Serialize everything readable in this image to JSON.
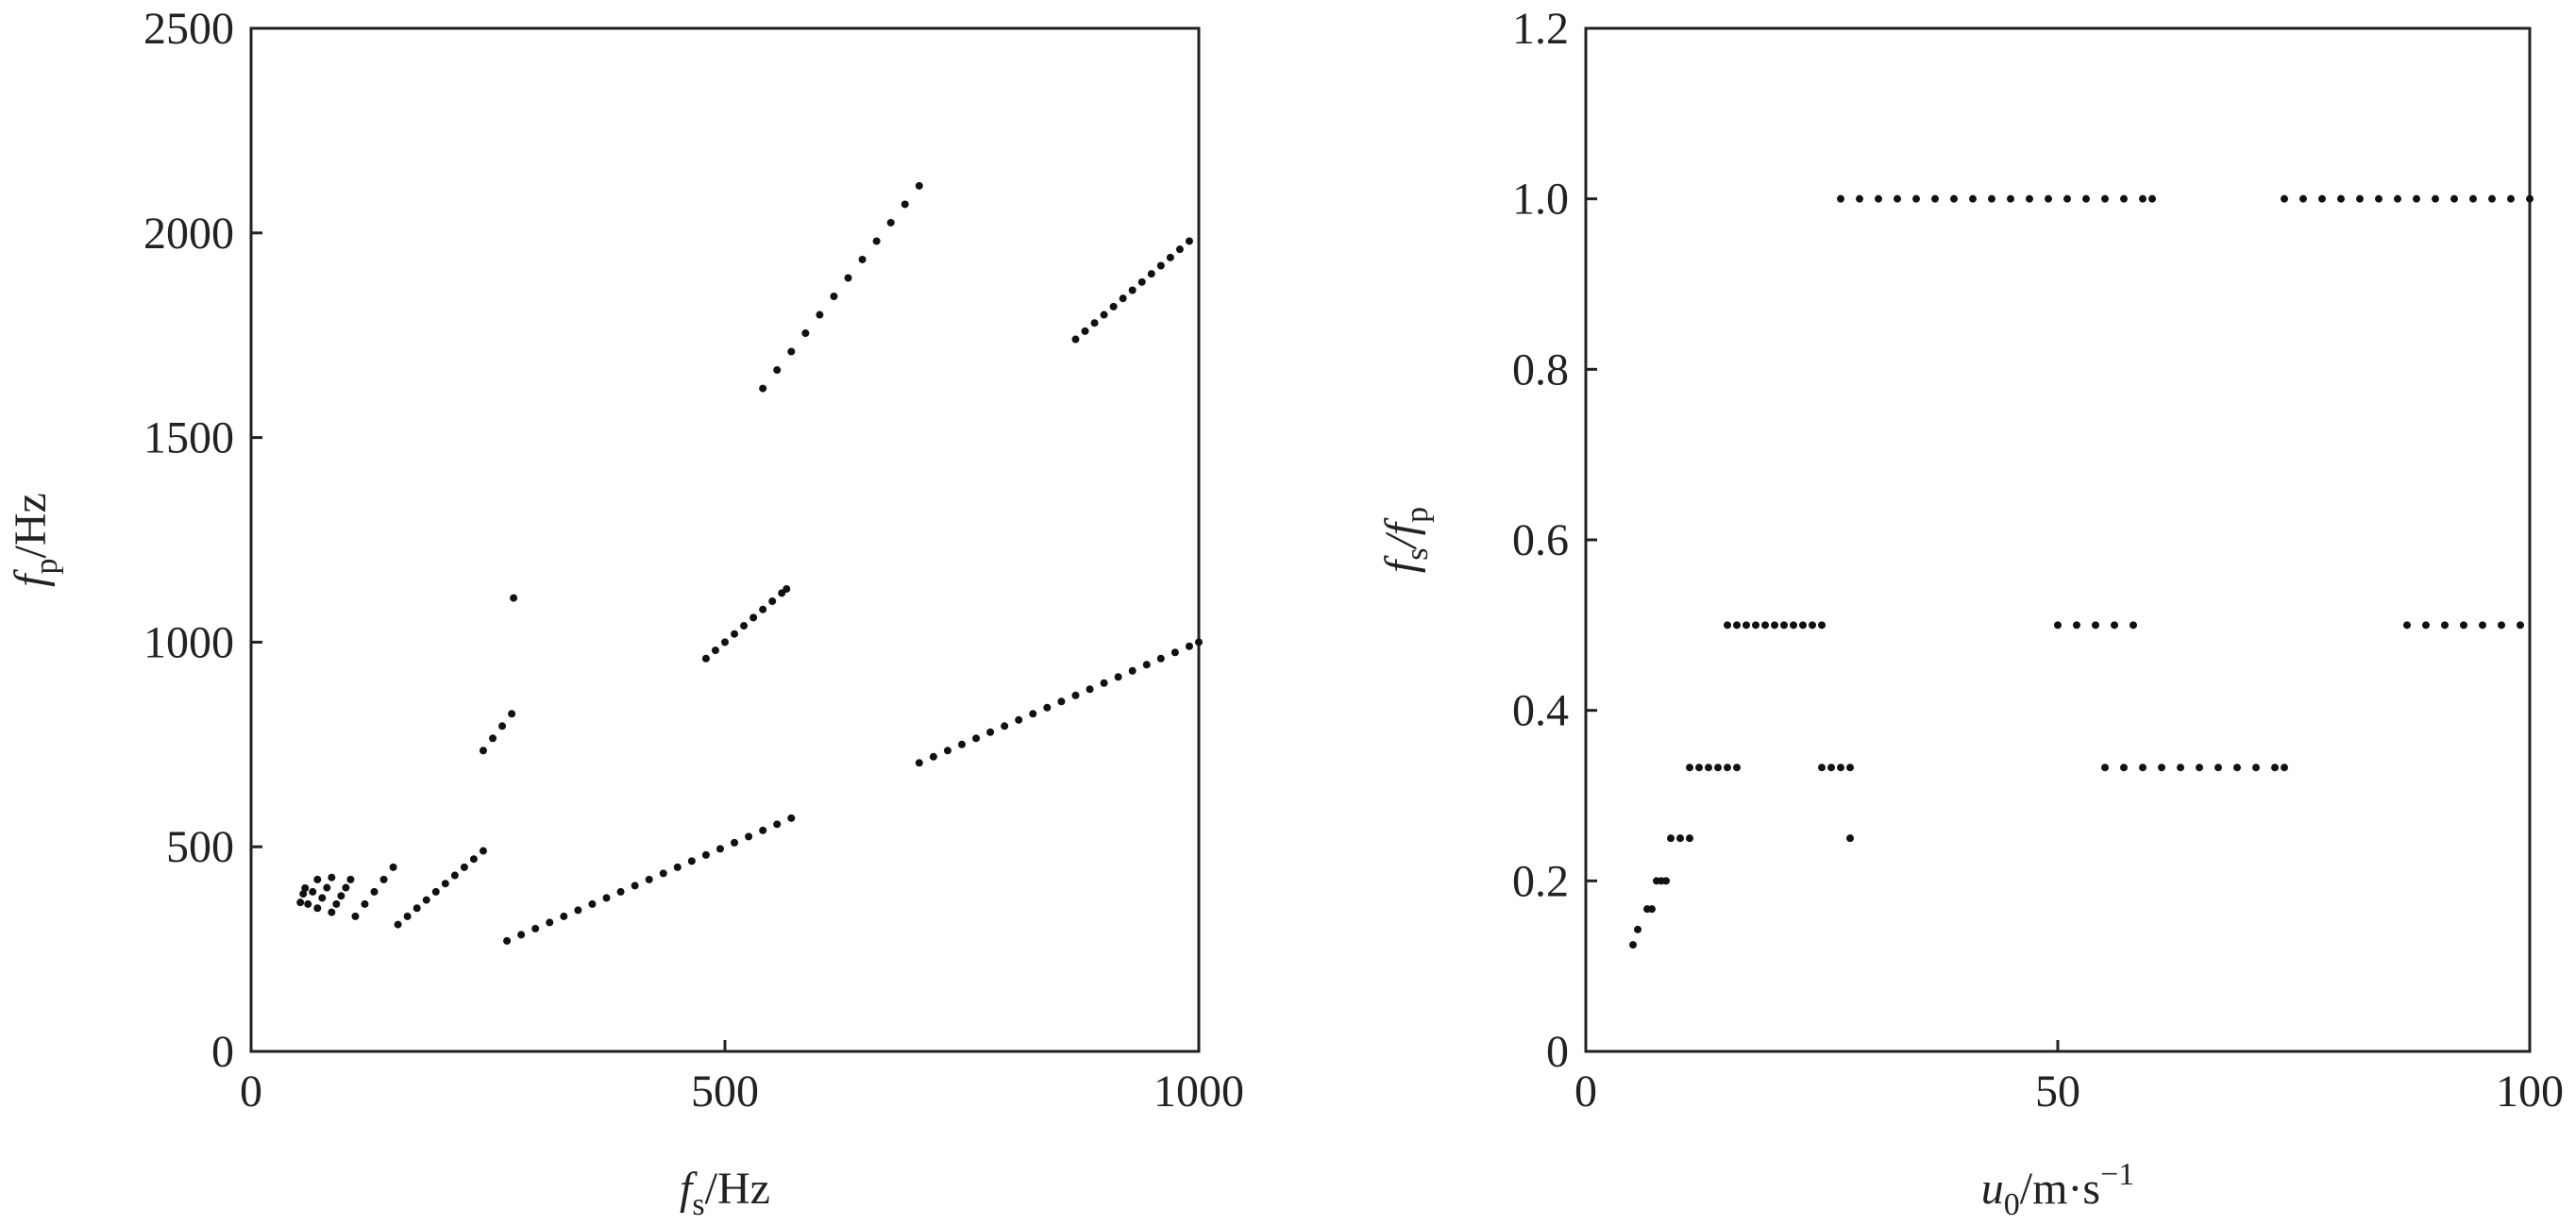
{
  "chart_data": [
    {
      "type": "scatter",
      "color": "#111111",
      "xlabel": [
        "f",
        "s",
        "/Hz"
      ],
      "ylabel": [
        "f",
        "p",
        "/Hz"
      ],
      "xlim": [
        0,
        1000
      ],
      "ylim": [
        0,
        2500
      ],
      "xticks": [
        0,
        500,
        1000
      ],
      "yticks": [
        0,
        500,
        1000,
        1500,
        2000,
        2500
      ],
      "x": [
        270,
        285,
        300,
        315,
        330,
        345,
        360,
        375,
        390,
        405,
        420,
        435,
        450,
        465,
        480,
        495,
        510,
        525,
        540,
        555,
        570,
        705,
        720,
        735,
        750,
        765,
        780,
        795,
        810,
        825,
        840,
        855,
        870,
        885,
        900,
        915,
        930,
        945,
        960,
        975,
        990,
        1000,
        155,
        165,
        175,
        185,
        195,
        205,
        215,
        225,
        235,
        245,
        480,
        490,
        500,
        510,
        520,
        530,
        540,
        550,
        560,
        565,
        870,
        880,
        890,
        900,
        910,
        920,
        930,
        940,
        950,
        960,
        970,
        980,
        990,
        110,
        120,
        130,
        140,
        150,
        245,
        255,
        265,
        275,
        540,
        555,
        570,
        585,
        600,
        615,
        630,
        645,
        660,
        675,
        690,
        705,
        85,
        90,
        95,
        100,
        105,
        277,
        70,
        75,
        80,
        85,
        60,
        65,
        70,
        52,
        55,
        57
      ],
      "y": [
        270,
        285,
        300,
        315,
        330,
        345,
        360,
        375,
        390,
        405,
        420,
        435,
        450,
        465,
        480,
        495,
        510,
        525,
        540,
        555,
        570,
        705,
        720,
        735,
        750,
        765,
        780,
        795,
        810,
        825,
        840,
        855,
        870,
        885,
        900,
        915,
        930,
        945,
        960,
        975,
        990,
        1000,
        310,
        330,
        350,
        370,
        390,
        410,
        430,
        450,
        470,
        490,
        960,
        980,
        1000,
        1020,
        1040,
        1060,
        1080,
        1100,
        1120,
        1130,
        1740,
        1760,
        1780,
        1800,
        1820,
        1840,
        1860,
        1880,
        1900,
        1920,
        1940,
        1960,
        1980,
        330,
        360,
        390,
        420,
        450,
        735,
        765,
        795,
        825,
        1620,
        1665,
        1710,
        1755,
        1800,
        1845,
        1890,
        1935,
        1980,
        2025,
        2070,
        2115,
        340,
        360,
        380,
        400,
        420,
        1108,
        350,
        375,
        400,
        425,
        360,
        390,
        420,
        364,
        385,
        399
      ]
    },
    {
      "type": "scatter",
      "color": "#111111",
      "xlabel": [
        "u",
        "0",
        "/m·s",
        "−1"
      ],
      "ylabel": [
        "f",
        "s",
        "/f",
        "p"
      ],
      "xlim": [
        0,
        100
      ],
      "ylim": [
        0,
        1.2
      ],
      "xticks": [
        0,
        50,
        100
      ],
      "yticks": [
        0,
        0.2,
        0.4,
        0.6,
        0.8,
        {
          "value": 1,
          "label": "1.0"
        },
        1.2
      ],
      "x": [
        5,
        5.5,
        6.5,
        7,
        7.5,
        8,
        8.5,
        9,
        10,
        11,
        11,
        12,
        13,
        14,
        15,
        16,
        15,
        16,
        17,
        18,
        19,
        20,
        21,
        22,
        23,
        24,
        25,
        25,
        26,
        27,
        28,
        28,
        27,
        29,
        31,
        33,
        35,
        37,
        39,
        41,
        43,
        45,
        47,
        49,
        51,
        53,
        55,
        57,
        59,
        60,
        50,
        52,
        54,
        56,
        58,
        55,
        57,
        59,
        61,
        63,
        65,
        67,
        69,
        71,
        73,
        74,
        74,
        76,
        78,
        80,
        82,
        84,
        86,
        88,
        90,
        92,
        94,
        96,
        98,
        100,
        87,
        89,
        91,
        93,
        95,
        97,
        99
      ],
      "y": [
        0.125,
        0.143,
        0.167,
        0.167,
        0.2,
        0.2,
        0.2,
        0.25,
        0.25,
        0.25,
        0.333,
        0.333,
        0.333,
        0.333,
        0.333,
        0.333,
        0.5,
        0.5,
        0.5,
        0.5,
        0.5,
        0.5,
        0.5,
        0.5,
        0.5,
        0.5,
        0.5,
        0.333,
        0.333,
        0.333,
        0.333,
        0.25,
        1,
        1,
        1,
        1,
        1,
        1,
        1,
        1,
        1,
        1,
        1,
        1,
        1,
        1,
        1,
        1,
        1,
        1,
        0.5,
        0.5,
        0.5,
        0.5,
        0.5,
        0.333,
        0.333,
        0.333,
        0.333,
        0.333,
        0.333,
        0.333,
        0.333,
        0.333,
        0.333,
        0.333,
        1,
        1,
        1,
        1,
        1,
        1,
        1,
        1,
        1,
        1,
        1,
        1,
        1,
        1,
        0.5,
        0.5,
        0.5,
        0.5,
        0.5,
        0.5,
        0.5
      ]
    }
  ]
}
